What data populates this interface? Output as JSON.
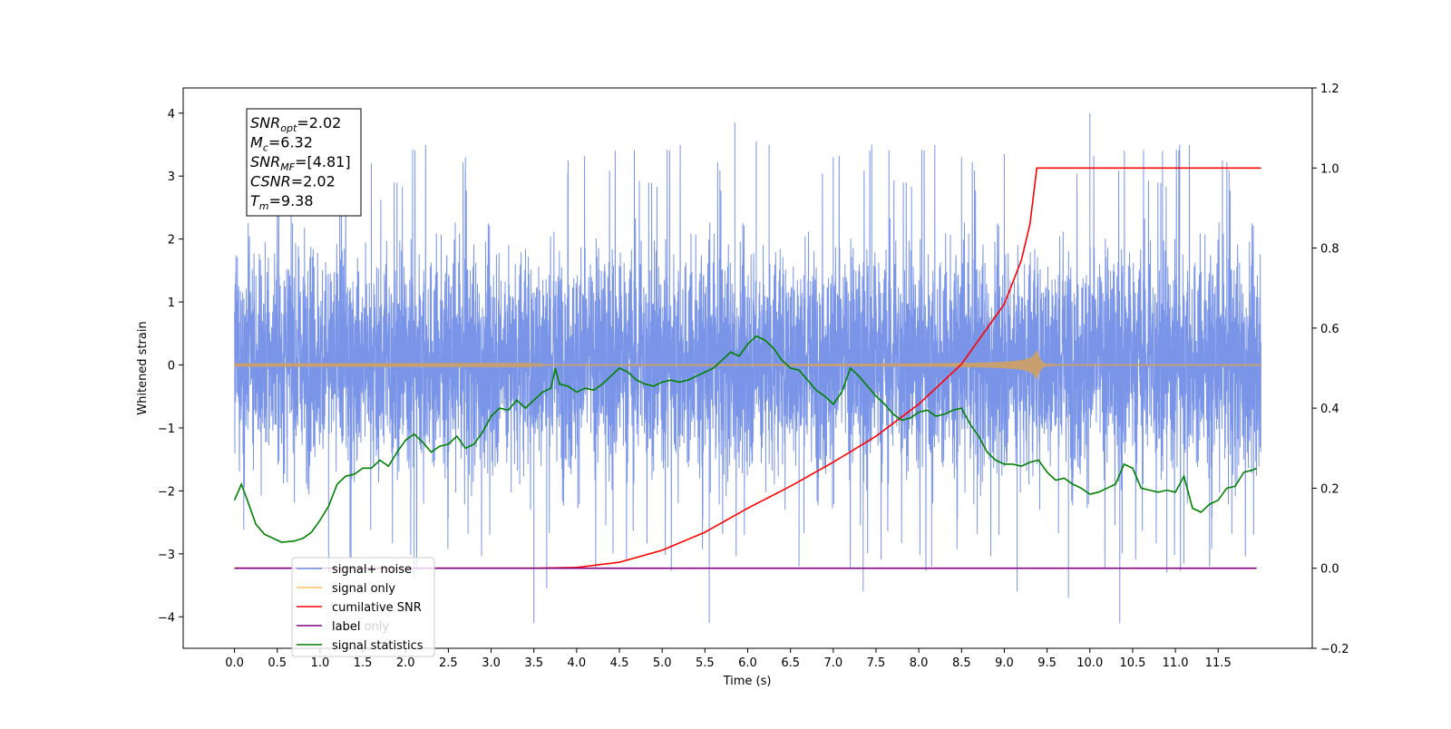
{
  "chart_data": {
    "type": "line",
    "xlabel": "Time (s)",
    "ylabel": "Whitened strain",
    "xlim": [
      -0.6,
      12.6
    ],
    "ylim": [
      -4.5,
      4.4
    ],
    "ylim_right": [
      -0.2,
      1.2
    ],
    "x_ticks": [
      0.0,
      0.5,
      1.0,
      1.5,
      2.0,
      2.5,
      3.0,
      3.5,
      4.0,
      4.5,
      5.0,
      5.5,
      6.0,
      6.5,
      7.0,
      7.5,
      8.0,
      8.5,
      9.0,
      9.5,
      10.0,
      10.5,
      11.0,
      11.5
    ],
    "x_tick_labels": [
      "0.0",
      "0.5",
      "1.0",
      "1.5",
      "2.0",
      "2.5",
      "3.0",
      "3.5",
      "4.0",
      "4.5",
      "5.0",
      "5.5",
      "6.0",
      "6.5",
      "7.0",
      "7.5",
      "8.0",
      "8.5",
      "9.0",
      "9.5",
      "10.0",
      "10.5",
      "11.0",
      "11.5"
    ],
    "y_ticks": [
      -4,
      -3,
      -2,
      -1,
      0,
      1,
      2,
      3,
      4
    ],
    "y_tick_labels": [
      "−4",
      "−3",
      "−2",
      "−1",
      "0",
      "1",
      "2",
      "3",
      "4"
    ],
    "y_right_ticks": [
      -0.2,
      0.0,
      0.2,
      0.4,
      0.6,
      0.8,
      1.0,
      1.2
    ],
    "y_right_tick_labels": [
      "−0.2",
      "0.0",
      "0.2",
      "0.4",
      "0.6",
      "0.8",
      "1.0",
      "1.2"
    ],
    "grid": false,
    "legend_position": "lower-left",
    "colors": {
      "signal_noise": "#6b8ae6",
      "signal_only": "#c8a070",
      "signal_only_legend": "#ffbf5c",
      "cumulative_snr": "#ff0000",
      "label": "#800080",
      "signal_statistics": "#008000"
    },
    "series": [
      {
        "key": "signal_noise",
        "name": "signal+ noise",
        "axis": "left",
        "kind": "noise",
        "x_range": [
          0.0,
          12.0
        ],
        "center": 0.0,
        "envelope": [
          -2.2,
          2.4
        ],
        "peak_maxima": [
          4.0,
          3.85,
          3.5
        ],
        "peak_minima": [
          -4.1,
          -4.1,
          -4.0
        ]
      },
      {
        "key": "signal_only",
        "name": "signal only",
        "axis": "left",
        "kind": "chirp",
        "x_range": [
          0.0,
          12.0
        ],
        "merger_time": 9.38,
        "max_amplitude": 0.25
      },
      {
        "key": "cumulative_snr",
        "name": "cumilative SNR",
        "axis": "right",
        "x": [
          0.0,
          3.5,
          4.0,
          4.5,
          5.0,
          5.5,
          6.0,
          6.5,
          7.0,
          7.5,
          8.0,
          8.5,
          9.0,
          9.2,
          9.3,
          9.38,
          12.0
        ],
        "y": [
          0.0,
          0.0,
          0.002,
          0.015,
          0.045,
          0.09,
          0.15,
          0.205,
          0.265,
          0.33,
          0.41,
          0.51,
          0.66,
          0.77,
          0.86,
          1.0,
          1.0
        ]
      },
      {
        "key": "label",
        "name": "label",
        "axis": "right",
        "x": [
          0.0,
          11.95
        ],
        "y": [
          0.0,
          0.0
        ]
      },
      {
        "key": "signal_statistics",
        "name": "signal statistics",
        "axis": "right",
        "x": [
          0.0,
          0.08,
          0.15,
          0.25,
          0.35,
          0.45,
          0.55,
          0.7,
          0.8,
          0.9,
          1.0,
          1.1,
          1.2,
          1.3,
          1.4,
          1.5,
          1.6,
          1.7,
          1.8,
          1.9,
          2.0,
          2.1,
          2.2,
          2.3,
          2.4,
          2.5,
          2.6,
          2.7,
          2.8,
          2.9,
          3.0,
          3.1,
          3.2,
          3.3,
          3.4,
          3.5,
          3.6,
          3.7,
          3.75,
          3.8,
          3.9,
          4.0,
          4.1,
          4.2,
          4.3,
          4.4,
          4.5,
          4.6,
          4.7,
          4.8,
          4.9,
          5.0,
          5.1,
          5.2,
          5.3,
          5.4,
          5.5,
          5.6,
          5.7,
          5.8,
          5.9,
          6.0,
          6.1,
          6.2,
          6.3,
          6.4,
          6.5,
          6.6,
          6.7,
          6.8,
          6.9,
          7.0,
          7.1,
          7.2,
          7.3,
          7.4,
          7.5,
          7.6,
          7.7,
          7.8,
          7.9,
          8.0,
          8.1,
          8.2,
          8.3,
          8.4,
          8.5,
          8.6,
          8.7,
          8.8,
          8.9,
          9.0,
          9.1,
          9.2,
          9.3,
          9.4,
          9.5,
          9.6,
          9.7,
          9.8,
          9.9,
          10.0,
          10.1,
          10.2,
          10.3,
          10.4,
          10.5,
          10.6,
          10.7,
          10.8,
          10.9,
          11.0,
          11.1,
          11.2,
          11.3,
          11.4,
          11.5,
          11.6,
          11.7,
          11.8,
          11.9,
          11.95
        ],
        "y": [
          0.17,
          0.21,
          0.17,
          0.11,
          0.085,
          0.075,
          0.065,
          0.068,
          0.075,
          0.09,
          0.12,
          0.155,
          0.21,
          0.23,
          0.235,
          0.25,
          0.25,
          0.27,
          0.255,
          0.29,
          0.32,
          0.335,
          0.315,
          0.29,
          0.305,
          0.31,
          0.33,
          0.3,
          0.31,
          0.34,
          0.38,
          0.4,
          0.395,
          0.42,
          0.4,
          0.42,
          0.44,
          0.45,
          0.5,
          0.46,
          0.455,
          0.44,
          0.45,
          0.445,
          0.46,
          0.48,
          0.5,
          0.49,
          0.47,
          0.46,
          0.455,
          0.465,
          0.47,
          0.465,
          0.47,
          0.48,
          0.49,
          0.5,
          0.52,
          0.54,
          0.53,
          0.56,
          0.58,
          0.57,
          0.55,
          0.52,
          0.5,
          0.495,
          0.47,
          0.445,
          0.43,
          0.41,
          0.44,
          0.5,
          0.48,
          0.455,
          0.43,
          0.41,
          0.385,
          0.37,
          0.375,
          0.39,
          0.395,
          0.38,
          0.385,
          0.395,
          0.4,
          0.36,
          0.33,
          0.29,
          0.27,
          0.26,
          0.26,
          0.255,
          0.265,
          0.27,
          0.24,
          0.22,
          0.225,
          0.21,
          0.2,
          0.185,
          0.19,
          0.2,
          0.21,
          0.26,
          0.25,
          0.2,
          0.195,
          0.19,
          0.195,
          0.19,
          0.23,
          0.15,
          0.14,
          0.16,
          0.17,
          0.2,
          0.205,
          0.24,
          0.245,
          0.25
        ]
      }
    ],
    "legend_entries": [
      {
        "key": "signal_noise",
        "label": "signal+ noise"
      },
      {
        "key": "signal_only",
        "label": "signal only"
      },
      {
        "key": "cumulative_snr",
        "label": "cumilative SNR"
      },
      {
        "key": "label",
        "label": "label"
      },
      {
        "key": "signal_statistics",
        "label": "signal statistics"
      }
    ],
    "hidden_legend_text": "label only",
    "annotation": [
      {
        "base": "SNR",
        "sub": "opt",
        "value": "=2.02"
      },
      {
        "base": "M",
        "sub": "c",
        "value": "=6.32"
      },
      {
        "base": "SNR",
        "sub": "MF",
        "value": "=[4.81]"
      },
      {
        "base": "CSNR",
        "sub": "",
        "value": "=2.02"
      },
      {
        "base": "T",
        "sub": "m",
        "value": "=9.38"
      }
    ]
  }
}
